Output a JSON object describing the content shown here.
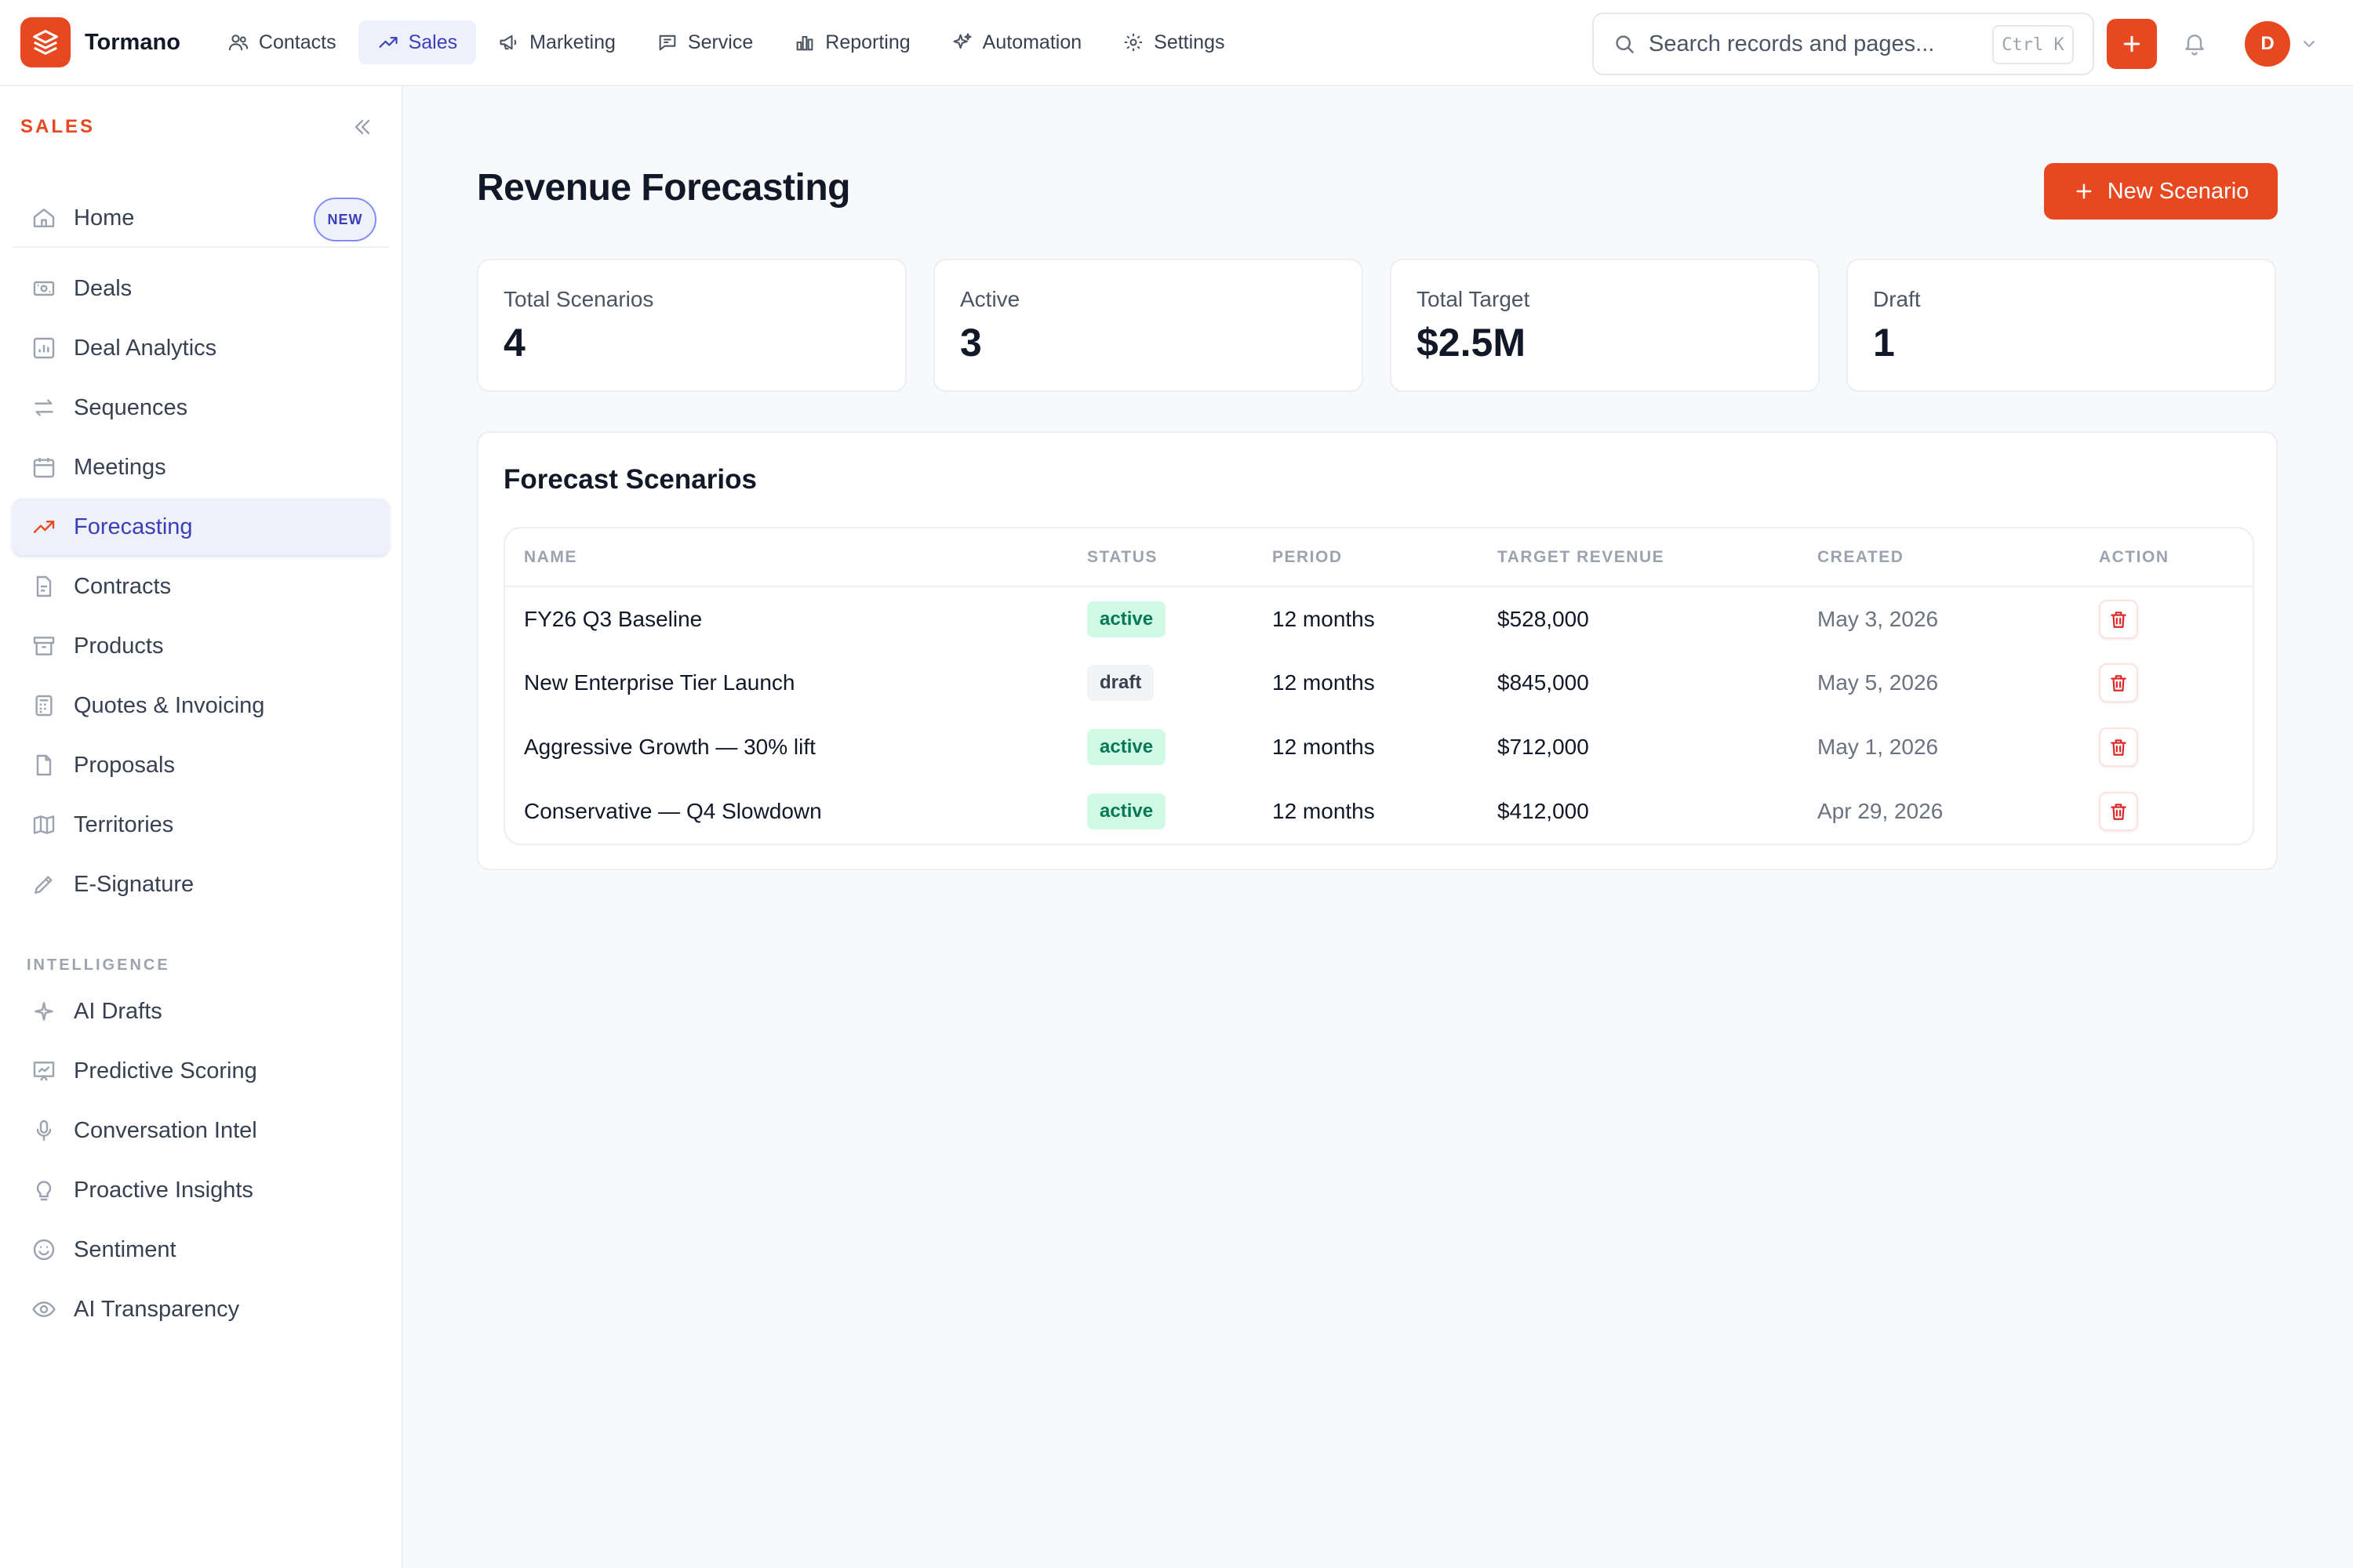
{
  "brand": {
    "name": "Tormano",
    "accent": "#e8481f"
  },
  "topnav": [
    {
      "label": "Contacts",
      "icon": "users-icon"
    },
    {
      "label": "Sales",
      "icon": "trend-up-icon",
      "active": true
    },
    {
      "label": "Marketing",
      "icon": "megaphone-icon"
    },
    {
      "label": "Service",
      "icon": "chat-icon"
    },
    {
      "label": "Reporting",
      "icon": "bar-chart-icon"
    },
    {
      "label": "Automation",
      "icon": "sparkles-icon"
    },
    {
      "label": "Settings",
      "icon": "gear-icon"
    }
  ],
  "search": {
    "placeholder": "Search records and pages...",
    "shortcut": "Ctrl K"
  },
  "user": {
    "initial": "D"
  },
  "sidebar": {
    "heading": "SALES",
    "home": {
      "label": "Home",
      "badge": "NEW"
    },
    "items": [
      {
        "label": "Deals",
        "icon": "money-icon"
      },
      {
        "label": "Deal Analytics",
        "icon": "analytics-icon"
      },
      {
        "label": "Sequences",
        "icon": "arrows-icon"
      },
      {
        "label": "Meetings",
        "icon": "calendar-icon"
      },
      {
        "label": "Forecasting",
        "icon": "trend-up-icon",
        "active": true
      },
      {
        "label": "Contracts",
        "icon": "document-icon"
      },
      {
        "label": "Products",
        "icon": "archive-icon"
      },
      {
        "label": "Quotes & Invoicing",
        "icon": "calculator-icon"
      },
      {
        "label": "Proposals",
        "icon": "file-icon"
      },
      {
        "label": "Territories",
        "icon": "map-icon"
      },
      {
        "label": "E-Signature",
        "icon": "pen-icon"
      }
    ],
    "section_label": "INTELLIGENCE",
    "intel_items": [
      {
        "label": "AI Drafts",
        "icon": "sparkle-icon"
      },
      {
        "label": "Predictive Scoring",
        "icon": "presentation-chart-icon"
      },
      {
        "label": "Conversation Intel",
        "icon": "microphone-icon"
      },
      {
        "label": "Proactive Insights",
        "icon": "lightbulb-icon"
      },
      {
        "label": "Sentiment",
        "icon": "smile-icon"
      },
      {
        "label": "AI Transparency",
        "icon": "eye-icon"
      }
    ]
  },
  "page": {
    "title": "Revenue Forecasting",
    "new_button": "New Scenario"
  },
  "stats": [
    {
      "label": "Total Scenarios",
      "value": "4"
    },
    {
      "label": "Active",
      "value": "3"
    },
    {
      "label": "Total Target",
      "value": "$2.5M"
    },
    {
      "label": "Draft",
      "value": "1"
    }
  ],
  "scenarios": {
    "title": "Forecast Scenarios",
    "columns": [
      "NAME",
      "STATUS",
      "PERIOD",
      "TARGET REVENUE",
      "CREATED",
      "ACTION"
    ],
    "rows": [
      {
        "name": "FY26 Q3 Baseline",
        "status": "active",
        "period": "12 months",
        "target": "$528,000",
        "created": "May 3, 2026"
      },
      {
        "name": "New Enterprise Tier Launch",
        "status": "draft",
        "period": "12 months",
        "target": "$845,000",
        "created": "May 5, 2026"
      },
      {
        "name": "Aggressive Growth — 30% lift",
        "status": "active",
        "period": "12 months",
        "target": "$712,000",
        "created": "May 1, 2026"
      },
      {
        "name": "Conservative — Q4 Slowdown",
        "status": "active",
        "period": "12 months",
        "target": "$412,000",
        "created": "Apr 29, 2026"
      }
    ]
  }
}
